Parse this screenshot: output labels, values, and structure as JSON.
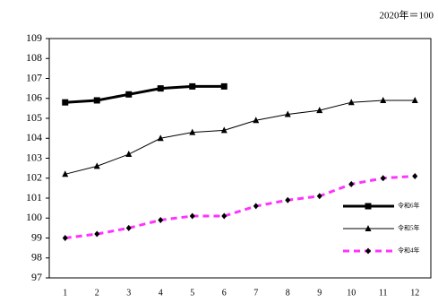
{
  "chart_data": {
    "type": "line",
    "subtitle": "2020年＝100",
    "categories": [
      "1",
      "2",
      "3",
      "4",
      "5",
      "6",
      "7",
      "8",
      "9",
      "10",
      "11",
      "12"
    ],
    "series": [
      {
        "name": "令和6年",
        "color": "#000000",
        "line_width": 3,
        "dash": "none",
        "marker": "square",
        "values": [
          105.8,
          105.9,
          106.2,
          106.5,
          106.6,
          106.6,
          null,
          null,
          null,
          null,
          null,
          null
        ]
      },
      {
        "name": "令和5年",
        "color": "#000000",
        "line_width": 1,
        "dash": "none",
        "marker": "triangle",
        "values": [
          102.2,
          102.6,
          103.2,
          104.0,
          104.3,
          104.4,
          104.9,
          105.2,
          105.4,
          105.8,
          105.9,
          105.9
        ]
      },
      {
        "name": "令和4年",
        "color": "#ff33ff",
        "line_width": 3,
        "dash": "7,5",
        "marker": "diamond",
        "values": [
          99.0,
          99.2,
          99.5,
          99.9,
          100.1,
          100.1,
          100.6,
          100.9,
          101.1,
          101.7,
          102.0,
          102.1
        ]
      }
    ],
    "ylim": [
      97,
      109
    ],
    "yticks": [
      97,
      98,
      99,
      100,
      101,
      102,
      103,
      104,
      105,
      106,
      107,
      108,
      109
    ],
    "grid": false
  }
}
